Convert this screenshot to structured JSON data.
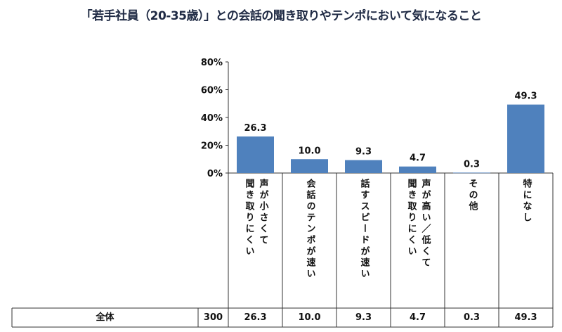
{
  "title": "「若手社員（20-35歳）」との会話の聞き取りやテンポにおいて気になること",
  "chart_data": {
    "type": "bar",
    "title": "「若手社員（20-35歳）」との会話の聞き取りやテンポにおいて気になること",
    "categories": [
      "声が小さくて聞き取りにくい",
      "会話のテンポが速い",
      "話すスピードが速い",
      "声が高い／低くて聞き取りにくい",
      "その他",
      "特になし"
    ],
    "category_lines": [
      [
        "声が小さくて",
        "聞き取りにくい"
      ],
      [
        "会話のテンポが速い"
      ],
      [
        "話すスピードが速い"
      ],
      [
        "声が高い／低くて",
        "聞き取りにくい"
      ],
      [
        "その他"
      ],
      [
        "特になし"
      ]
    ],
    "values": [
      26.3,
      10.0,
      9.3,
      4.7,
      0.3,
      49.3
    ],
    "value_labels": [
      "26.3",
      "10.0",
      "9.3",
      "4.7",
      "0.3",
      "49.3"
    ],
    "ylim": [
      0,
      80
    ],
    "yticks": [
      "0%",
      "20%",
      "40%",
      "60%",
      "80%"
    ],
    "grid": false,
    "bar_color": "#4f81bd"
  },
  "table": {
    "row_label": "全体",
    "n": "300",
    "values": [
      "26.3",
      "10.0",
      "9.3",
      "4.7",
      "0.3",
      "49.3"
    ]
  }
}
